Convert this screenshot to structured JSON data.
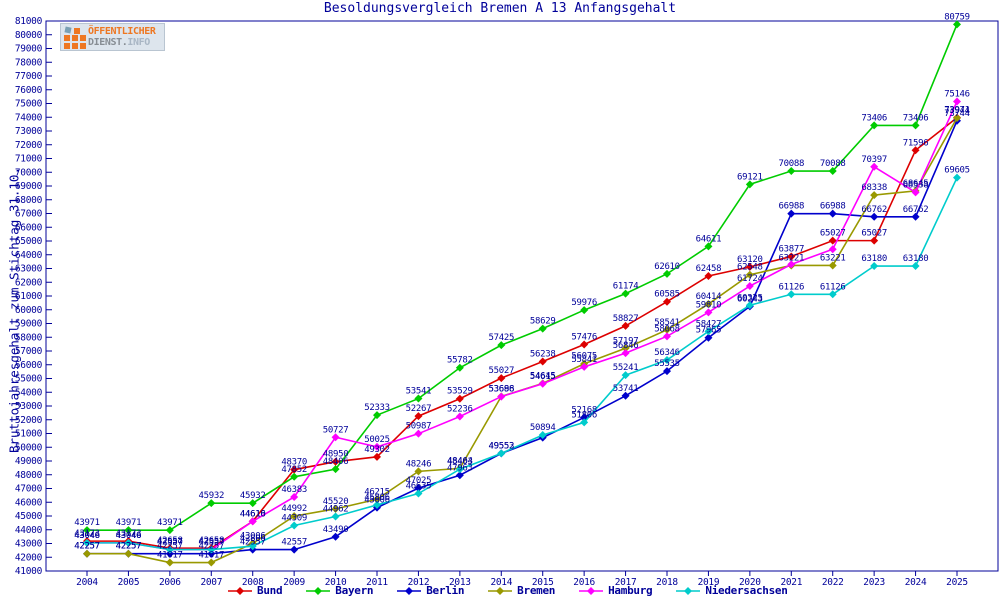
{
  "title": "Besoldungsvergleich Bremen A 13 Anfangsgehalt",
  "logo": {
    "line1": "ÖFFENTLICHER",
    "line2_part1": "DIENST.",
    "line2_part2": "INFO"
  },
  "axes": {
    "y_label": "Bruttojahresgehalt zum Stichtag 31.10.",
    "y_min": 41000,
    "y_max": 81000,
    "y_step": 1000,
    "frame_color": "#000099",
    "text_color": "#000099"
  },
  "chart_data": {
    "type": "line",
    "title": "Besoldungsvergleich Bremen A 13 Anfangsgehalt",
    "ylabel": "Bruttojahresgehalt zum Stichtag 31.10.",
    "ylim": [
      41000,
      81000
    ],
    "grid": false,
    "legend_position": "bottom",
    "x": [
      2004,
      2005,
      2006,
      2007,
      2008,
      2009,
      2010,
      2011,
      2012,
      2013,
      2014,
      2015,
      2016,
      2017,
      2018,
      2019,
      2020,
      2021,
      2022,
      2023,
      2024,
      2025
    ],
    "series": [
      {
        "name": "Bund",
        "color": "#dd0000",
        "values": [
          43173,
          43173,
          42658,
          42658,
          44616,
          48370,
          48950,
          49302,
          52267,
          53529,
          55027,
          56238,
          57476,
          58827,
          60585,
          62458,
          63120,
          63877,
          65027,
          65027,
          71596,
          73971
        ],
        "hide_labels": []
      },
      {
        "name": "Bayern",
        "color": "#00cc00",
        "values": [
          43971,
          43971,
          43971,
          45932,
          45932,
          47852,
          48406,
          52333,
          53541,
          55782,
          57425,
          58629,
          59976,
          61174,
          62610,
          64611,
          69121,
          70088,
          70088,
          73406,
          73406,
          80759
        ],
        "hide_labels": []
      },
      {
        "name": "Berlin",
        "color": "#0000cc",
        "values": [
          42257,
          42257,
          42257,
          42257,
          42557,
          42557,
          43490,
          45606,
          47025,
          47963,
          49552,
          50700,
          52168,
          53741,
          55535,
          57965,
          60243,
          66988,
          66988,
          66762,
          66762,
          73744
        ],
        "hide_labels": [
          2015
        ]
      },
      {
        "name": "Bremen",
        "color": "#999900",
        "values": [
          42257,
          42257,
          41617,
          41617,
          43006,
          44992,
          45520,
          46215,
          48246,
          48464,
          53698,
          54645,
          56075,
          57197,
          58541,
          60414,
          62548,
          63221,
          63221,
          68338,
          68645,
          73944
        ],
        "hide_labels": []
      },
      {
        "name": "Hamburg",
        "color": "#ff00ff",
        "values": [
          43046,
          43046,
          42557,
          42557,
          44610,
          46383,
          50727,
          50025,
          50987,
          52236,
          53686,
          54615,
          55841,
          56846,
          58068,
          59810,
          61724,
          63300,
          64400,
          70397,
          68538,
          75146
        ],
        "hide_labels": [
          2021,
          2022
        ]
      },
      {
        "name": "Niedersachsen",
        "color": "#00cccc",
        "values": [
          43046,
          43046,
          42557,
          42557,
          42806,
          44309,
          44962,
          45806,
          46635,
          48403,
          49553,
          50894,
          51806,
          55241,
          56346,
          58427,
          60325,
          61126,
          61126,
          63180,
          63180,
          69605
        ],
        "hide_labels": []
      }
    ]
  }
}
